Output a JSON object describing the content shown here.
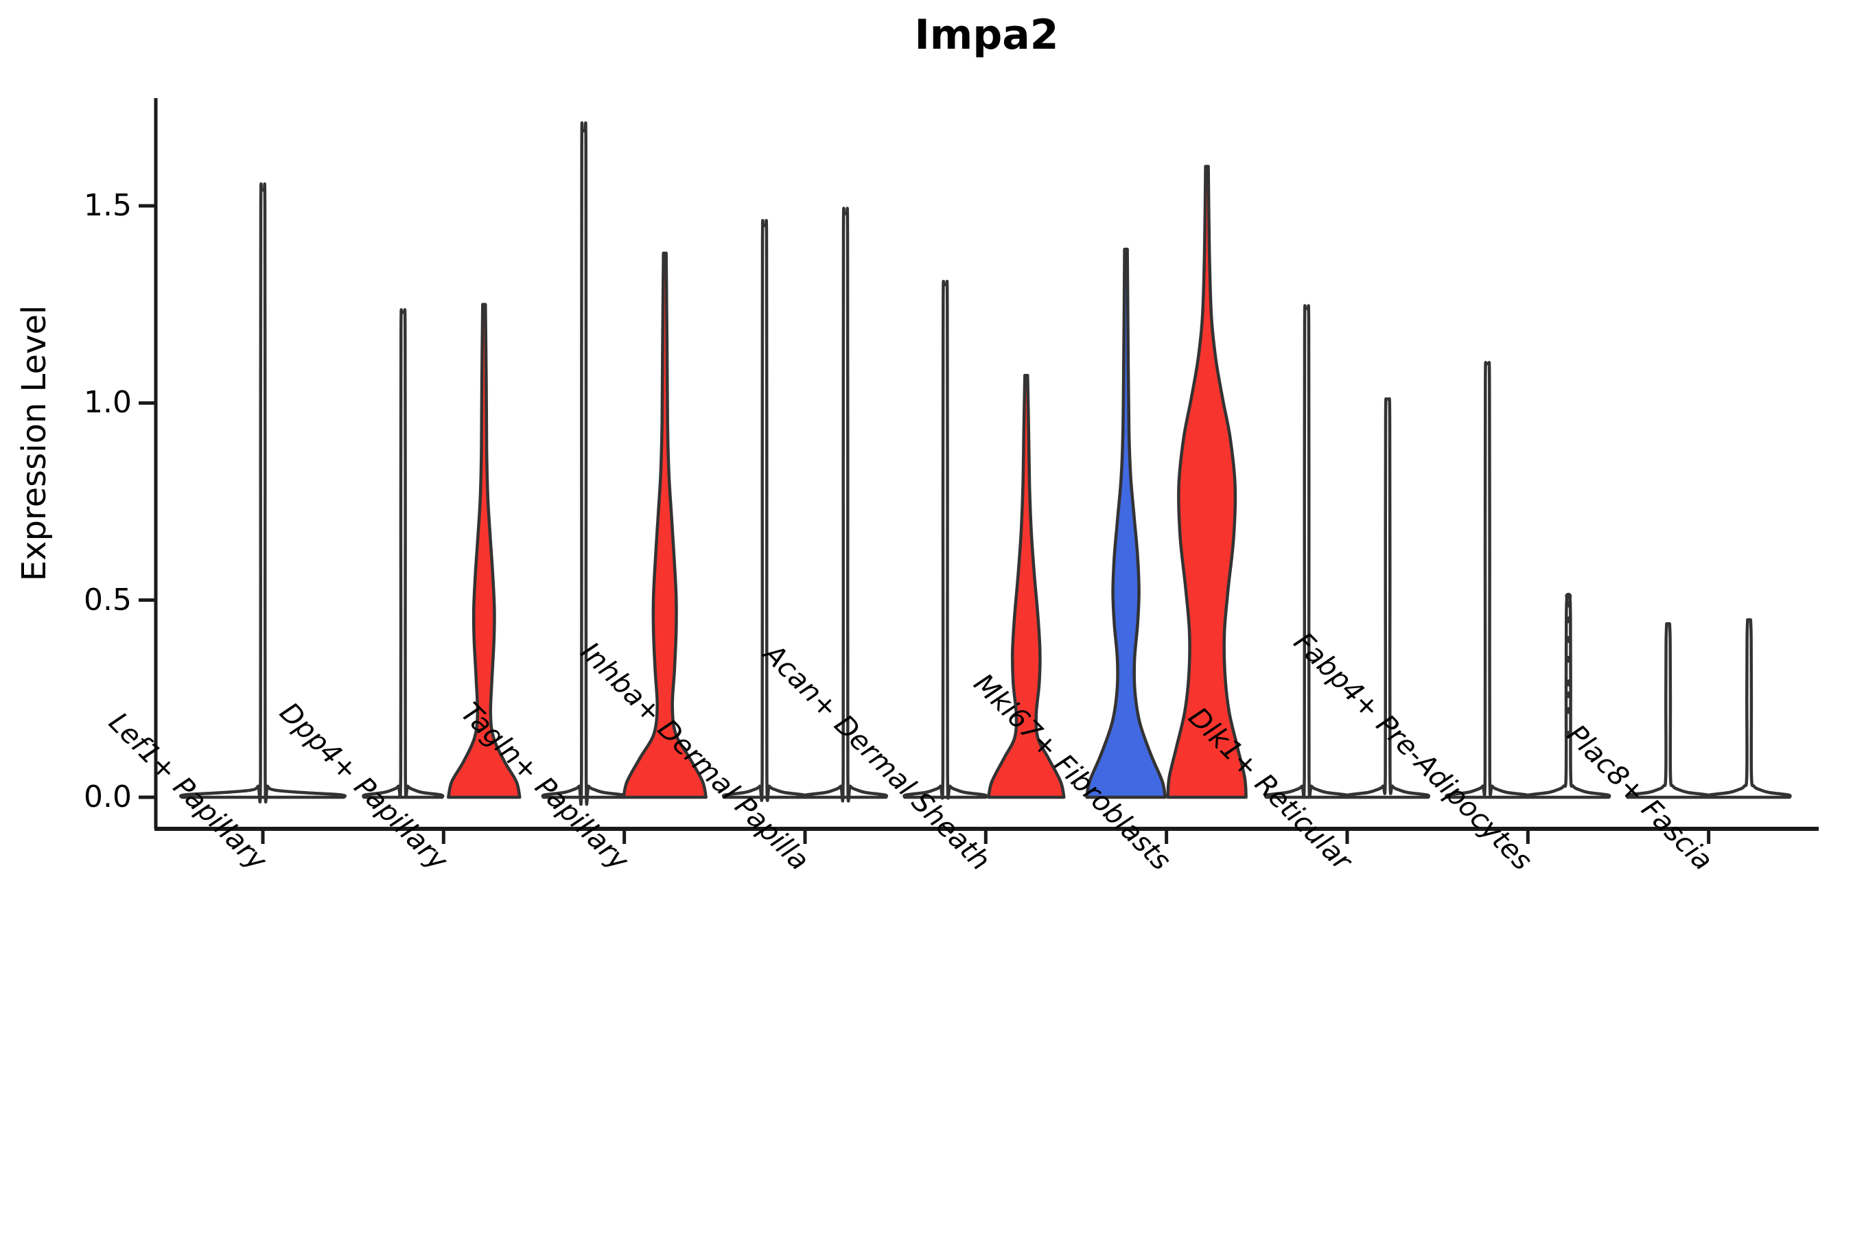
{
  "chart_data": {
    "type": "violin",
    "title": "Impa2",
    "ylabel": "Expression Level",
    "xlabel": "",
    "legend": "none",
    "grid": false,
    "ylim": [
      0,
      1.77
    ],
    "yticks": [
      0.0,
      0.5,
      1.0,
      1.5
    ],
    "ytick_labels": [
      "0.0",
      "0.5",
      "1.0",
      "1.5"
    ],
    "categories": [
      "Lef1+ Papillary",
      "Dpp4+ Papillary",
      "Tagln+ Papillary",
      "Inhba+ Dermal Papilla",
      "Acan+ Dermal Sheath",
      "Mki67+ Fibroblasts",
      "Dlk1+ Reticular",
      "Fabp4+ Pre-Adipocytes",
      "Plac8+ Fascia"
    ],
    "colors": {
      "red": "#F7352E",
      "blue": "#4169E1",
      "white": "#FFFFFF",
      "outline": "#333333",
      "axis": "#1A1A1A",
      "dot": "#333333"
    },
    "groups": [
      {
        "category": "Lef1+ Papillary",
        "violins": [
          {
            "pos": "center",
            "color": "white",
            "type": "spike",
            "top": 1.54,
            "base_halfwidth": 118
          }
        ]
      },
      {
        "category": "Dpp4+ Papillary",
        "violins": [
          {
            "pos": "left",
            "color": "white",
            "type": "spike",
            "top": 1.23,
            "base_halfwidth": 57
          },
          {
            "pos": "right",
            "color": "red",
            "type": "density",
            "top": 1.25,
            "profile": [
              [
                0,
                52
              ],
              [
                0.04,
                47
              ],
              [
                0.09,
                30
              ],
              [
                0.15,
                14
              ],
              [
                0.21,
                9.5
              ],
              [
                0.3,
                11.5
              ],
              [
                0.4,
                14.5
              ],
              [
                0.48,
                15
              ],
              [
                0.57,
                12.5
              ],
              [
                0.66,
                9
              ],
              [
                0.76,
                5.5
              ],
              [
                0.88,
                3.8
              ],
              [
                1.05,
                3.2
              ],
              [
                1.25,
                2
              ]
            ]
          }
        ]
      },
      {
        "category": "Tagln+ Papillary",
        "violins": [
          {
            "pos": "left",
            "color": "white",
            "type": "spike",
            "top": 1.69,
            "base_halfwidth": 59
          },
          {
            "pos": "right",
            "color": "red",
            "type": "density",
            "top": 1.38,
            "profile": [
              [
                0,
                60
              ],
              [
                0.04,
                55
              ],
              [
                0.1,
                36
              ],
              [
                0.16,
                16
              ],
              [
                0.23,
                11
              ],
              [
                0.32,
                14
              ],
              [
                0.42,
                16.5
              ],
              [
                0.51,
                16.5
              ],
              [
                0.61,
                13.5
              ],
              [
                0.72,
                9.5
              ],
              [
                0.82,
                6
              ],
              [
                0.95,
                4
              ],
              [
                1.15,
                3.2
              ],
              [
                1.38,
                2
              ]
            ]
          }
        ]
      },
      {
        "category": "Inhba+ Dermal Papilla",
        "violins": [
          {
            "pos": "left",
            "color": "white",
            "type": "spike",
            "top": 1.45,
            "base_halfwidth": 59
          },
          {
            "pos": "right",
            "color": "white",
            "type": "spike",
            "top": 1.48,
            "base_halfwidth": 59
          }
        ]
      },
      {
        "category": "Acan+ Dermal Sheath",
        "violins": [
          {
            "pos": "left",
            "color": "white",
            "type": "spike",
            "top": 1.3,
            "base_halfwidth": 59
          },
          {
            "pos": "right",
            "color": "red",
            "type": "density",
            "top": 1.07,
            "profile": [
              [
                0,
                55
              ],
              [
                0.04,
                50
              ],
              [
                0.1,
                32
              ],
              [
                0.15,
                17
              ],
              [
                0.21,
                14.5
              ],
              [
                0.29,
                19
              ],
              [
                0.37,
                20
              ],
              [
                0.46,
                17
              ],
              [
                0.56,
                12
              ],
              [
                0.67,
                7.5
              ],
              [
                0.79,
                4.8
              ],
              [
                0.93,
                3.5
              ],
              [
                1.07,
                2
              ]
            ]
          }
        ]
      },
      {
        "category": "Mki67+ Fibroblasts",
        "violins": [
          {
            "pos": "left",
            "color": "blue",
            "type": "density",
            "top": 1.39,
            "profile": [
              [
                0,
                57
              ],
              [
                0.04,
                53
              ],
              [
                0.11,
                36
              ],
              [
                0.19,
                20
              ],
              [
                0.27,
                13
              ],
              [
                0.35,
                12.5
              ],
              [
                0.44,
                17
              ],
              [
                0.52,
                19
              ],
              [
                0.61,
                17
              ],
              [
                0.71,
                12
              ],
              [
                0.81,
                7
              ],
              [
                0.92,
                4.5
              ],
              [
                1.1,
                3.3
              ],
              [
                1.39,
                2
              ]
            ]
          },
          {
            "pos": "right",
            "color": "red",
            "type": "density",
            "top": 1.6,
            "profile": [
              [
                0,
                57
              ],
              [
                0.05,
                55
              ],
              [
                0.13,
                44
              ],
              [
                0.22,
                32
              ],
              [
                0.32,
                26
              ],
              [
                0.42,
                25.5
              ],
              [
                0.53,
                31
              ],
              [
                0.66,
                39
              ],
              [
                0.79,
                41
              ],
              [
                0.91,
                34
              ],
              [
                1.01,
                23
              ],
              [
                1.11,
                13
              ],
              [
                1.22,
                6.5
              ],
              [
                1.38,
                3.6
              ],
              [
                1.6,
                2
              ]
            ]
          }
        ]
      },
      {
        "category": "Dlk1+ Reticular",
        "violins": [
          {
            "pos": "left",
            "color": "white",
            "type": "spike",
            "top": 1.24,
            "base_halfwidth": 59
          },
          {
            "pos": "right",
            "color": "white",
            "type": "spike",
            "top": 1.01,
            "base_halfwidth": 59
          }
        ]
      },
      {
        "category": "Fabp4+ Pre-Adipocytes",
        "violins": [
          {
            "pos": "left",
            "color": "white",
            "type": "spike",
            "top": 1.1,
            "base_halfwidth": 59
          },
          {
            "pos": "right",
            "color": "white",
            "type": "strip",
            "top": 0.51,
            "base_halfwidth": 59,
            "dots": [
              0.51,
              0.49,
              0.45,
              0.4,
              0.35,
              0.29,
              0.26,
              0.22,
              0.16
            ]
          }
        ]
      },
      {
        "category": "Plac8+ Fascia",
        "violins": [
          {
            "pos": "left",
            "color": "white",
            "type": "spike",
            "top": 0.44,
            "base_halfwidth": 59
          },
          {
            "pos": "right",
            "color": "white",
            "type": "spike",
            "top": 0.45,
            "base_halfwidth": 59
          }
        ]
      }
    ]
  }
}
